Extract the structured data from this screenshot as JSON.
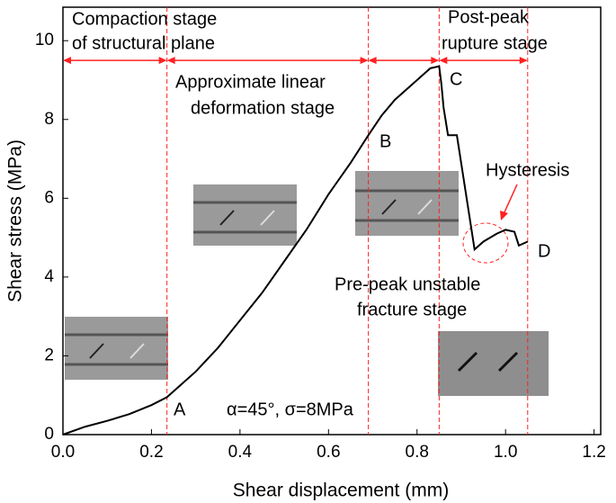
{
  "chart_data": {
    "type": "line",
    "x_label": "Shear displacement (mm)",
    "y_label": "Shear stress (MPa)",
    "x": [
      0,
      0.05,
      0.1,
      0.15,
      0.2,
      0.235,
      0.3,
      0.35,
      0.4,
      0.45,
      0.5,
      0.55,
      0.6,
      0.65,
      0.69,
      0.72,
      0.75,
      0.8,
      0.83,
      0.85,
      0.855,
      0.86,
      0.87,
      0.89,
      0.93,
      0.95,
      0.98,
      1.0,
      1.02,
      1.03,
      1.05
    ],
    "values": [
      0,
      0.2,
      0.35,
      0.52,
      0.75,
      0.95,
      1.6,
      2.2,
      2.9,
      3.6,
      4.4,
      5.2,
      6.1,
      6.9,
      7.6,
      8.1,
      8.5,
      9.0,
      9.3,
      9.35,
      8.9,
      8.3,
      7.6,
      7.6,
      4.7,
      4.9,
      5.1,
      5.2,
      5.15,
      4.8,
      4.9
    ],
    "color": "#000000",
    "xlim": [
      0,
      1.215
    ],
    "xticks": [
      {
        "value": 0,
        "label": "0.0"
      },
      0.2,
      0.4,
      0.6,
      0.8,
      {
        "value": 1,
        "label": "1.0"
      },
      1.2
    ],
    "ylim": [
      0,
      10.85
    ],
    "yticks": [
      0,
      2,
      4,
      6,
      8,
      10
    ],
    "stage_boundaries": [
      0.235,
      0.69,
      0.85,
      1.05
    ],
    "boundary_color": "#ff2020",
    "annotations": [
      "Compaction stage",
      "of structural plane",
      "Approximate linear",
      "deformation stage",
      "Post-peak",
      "rupture stage",
      "Pre-peak unstable",
      "fracture stage",
      "Hysteresis",
      "A",
      "B",
      "C",
      "D",
      "α=45°,   σ=8MPa"
    ]
  }
}
